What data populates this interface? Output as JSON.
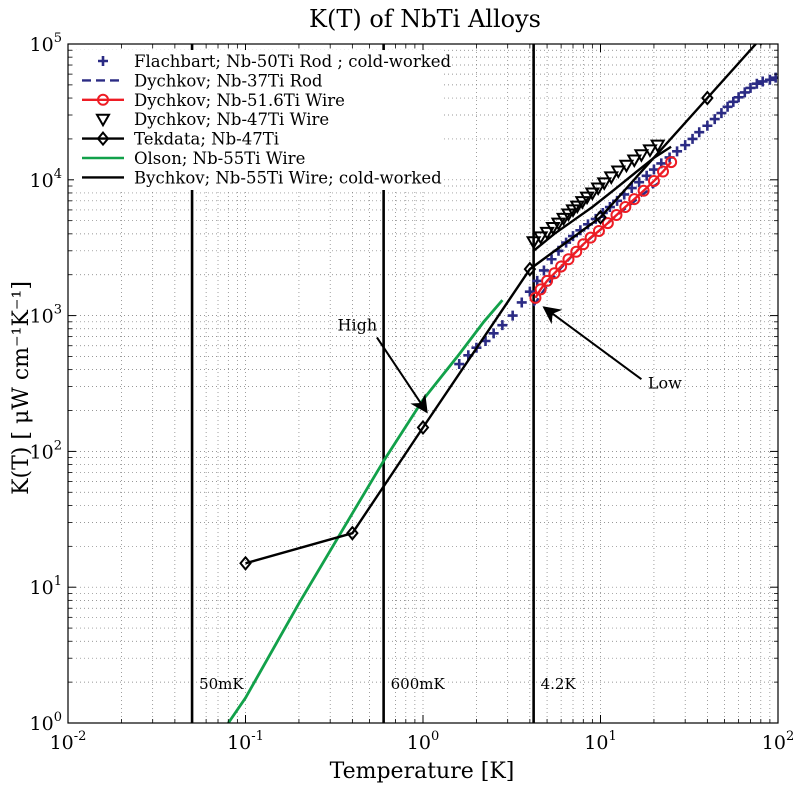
{
  "chart_data": {
    "type": "line",
    "title": "K(T) of NbTi Alloys",
    "xlabel": "Temperature [K]",
    "ylabel": "K(T) [ μW cm⁻¹K⁻¹]",
    "xscale": "log",
    "yscale": "log",
    "xlim": [
      0.01,
      100
    ],
    "ylim": [
      1,
      100000
    ],
    "grid": true,
    "legend_position": "top-left",
    "x_ticks": [
      {
        "value": 0.01,
        "base": "10",
        "exp": "-2"
      },
      {
        "value": 0.1,
        "base": "10",
        "exp": "-1"
      },
      {
        "value": 1,
        "base": "10",
        "exp": "0"
      },
      {
        "value": 10,
        "base": "10",
        "exp": "1"
      },
      {
        "value": 100,
        "base": "10",
        "exp": "2"
      }
    ],
    "y_ticks": [
      {
        "value": 1,
        "base": "10",
        "exp": "0"
      },
      {
        "value": 10,
        "base": "10",
        "exp": "1"
      },
      {
        "value": 100,
        "base": "10",
        "exp": "2"
      },
      {
        "value": 1000,
        "base": "10",
        "exp": "3"
      },
      {
        "value": 10000,
        "base": "10",
        "exp": "4"
      },
      {
        "value": 100000,
        "base": "10",
        "exp": "5"
      }
    ],
    "vertical_lines": [
      {
        "x": 0.05,
        "label": "50mK"
      },
      {
        "x": 0.6,
        "label": "600mK"
      },
      {
        "x": 4.2,
        "label": "4.2K"
      }
    ],
    "annotations": [
      {
        "text": "High",
        "text_x": 0.33,
        "text_y": 780,
        "arrow_from": [
          0.55,
          690
        ],
        "arrow_to": [
          1.05,
          195
        ]
      },
      {
        "text": "Low",
        "text_x": 18.5,
        "text_y": 290,
        "arrow_from": [
          17,
          340
        ],
        "arrow_to": [
          4.8,
          1150
        ]
      }
    ],
    "series": [
      {
        "name": "Flachbart; Nb-50Ti Rod ; cold-worked",
        "color": "#2b2b84",
        "line": "none",
        "marker": "plus",
        "points": [
          [
            1.6,
            440
          ],
          [
            1.8,
            510
          ],
          [
            2.0,
            580
          ],
          [
            2.25,
            650
          ],
          [
            2.5,
            740
          ],
          [
            2.8,
            850
          ],
          [
            3.2,
            1000
          ],
          [
            3.6,
            1250
          ],
          [
            4.0,
            1500
          ],
          [
            4.4,
            1800
          ],
          [
            4.8,
            2150
          ],
          [
            5.3,
            2600
          ],
          [
            5.8,
            3000
          ],
          [
            6.4,
            3450
          ],
          [
            7.0,
            3850
          ],
          [
            7.7,
            4250
          ],
          [
            8.5,
            4700
          ],
          [
            9.4,
            5150
          ],
          [
            10.3,
            5700
          ],
          [
            11.3,
            6300
          ],
          [
            12.4,
            7000
          ],
          [
            13.6,
            7800
          ],
          [
            15,
            8700
          ],
          [
            16.5,
            9600
          ],
          [
            18.2,
            10700
          ],
          [
            20,
            11900
          ],
          [
            22,
            13200
          ],
          [
            24.5,
            14600
          ],
          [
            27,
            16200
          ],
          [
            30,
            18000
          ],
          [
            33,
            20000
          ],
          [
            36,
            22400
          ],
          [
            40,
            25000
          ],
          [
            44,
            28000
          ],
          [
            48,
            31000
          ],
          [
            52,
            34500
          ],
          [
            56,
            37500
          ],
          [
            60,
            40500
          ],
          [
            65,
            44000
          ],
          [
            70,
            47500
          ],
          [
            76,
            51000
          ],
          [
            82,
            53000
          ],
          [
            90,
            54500
          ],
          [
            97,
            56500
          ]
        ]
      },
      {
        "name": "Dychkov; Nb-37Ti Rod",
        "color": "#2b2b84",
        "line": "dashed",
        "marker": "none",
        "points": [
          [
            4.2,
            1180
          ],
          [
            4.6,
            1420
          ],
          [
            5.2,
            1780
          ],
          [
            6,
            2250
          ],
          [
            7,
            2800
          ],
          [
            8,
            3350
          ],
          [
            10,
            4300
          ],
          [
            12,
            5300
          ],
          [
            15,
            6700
          ],
          [
            18,
            8100
          ],
          [
            22,
            9800
          ]
        ]
      },
      {
        "name": "Dychkov; Nb-51.6Ti Wire",
        "color": "#ee1c24",
        "line": "solid",
        "marker": "circle",
        "points": [
          [
            4.3,
            1350
          ],
          [
            4.6,
            1560
          ],
          [
            5.0,
            1800
          ],
          [
            5.5,
            2050
          ],
          [
            6.0,
            2300
          ],
          [
            6.6,
            2600
          ],
          [
            7.3,
            2950
          ],
          [
            8.0,
            3350
          ],
          [
            8.8,
            3750
          ],
          [
            9.8,
            4200
          ],
          [
            11,
            4800
          ],
          [
            12.3,
            5500
          ],
          [
            13.8,
            6300
          ],
          [
            15.5,
            7200
          ],
          [
            17.5,
            8300
          ],
          [
            20,
            9800
          ],
          [
            22.5,
            11500
          ],
          [
            25,
            13500
          ]
        ]
      },
      {
        "name": "Dychkov; Nb-47Ti Wire",
        "color": "#000000",
        "line": "none",
        "marker": "triangle-down",
        "points": [
          [
            4.2,
            3500
          ],
          [
            4.6,
            3800
          ],
          [
            5.0,
            4100
          ],
          [
            5.4,
            4450
          ],
          [
            5.8,
            4800
          ],
          [
            6.2,
            5200
          ],
          [
            6.6,
            5600
          ],
          [
            7.0,
            6000
          ],
          [
            7.4,
            6400
          ],
          [
            7.9,
            6900
          ],
          [
            8.4,
            7450
          ],
          [
            9.0,
            8000
          ],
          [
            9.7,
            8700
          ],
          [
            10.5,
            9500
          ],
          [
            11.5,
            10500
          ],
          [
            12.6,
            11600
          ],
          [
            14,
            12800
          ],
          [
            15.5,
            14000
          ],
          [
            17,
            15300
          ],
          [
            19,
            16600
          ],
          [
            21,
            18000
          ]
        ]
      },
      {
        "name": "Tekdata; Nb-47Ti",
        "color": "#000000",
        "line": "solid",
        "marker": "diamond",
        "points": [
          [
            0.1,
            15
          ],
          [
            0.4,
            25
          ],
          [
            1.0,
            150
          ],
          [
            4.0,
            2200
          ],
          [
            10,
            5300
          ],
          [
            40,
            40000
          ],
          [
            80,
            110000
          ]
        ]
      },
      {
        "name": "Olson; Nb-55Ti Wire",
        "color": "#12a14a",
        "line": "solid",
        "marker": "none",
        "points": [
          [
            0.08,
            1
          ],
          [
            0.1,
            1.53
          ],
          [
            0.2,
            7.6
          ],
          [
            0.4,
            35
          ],
          [
            0.6,
            85
          ],
          [
            1.0,
            240
          ],
          [
            1.6,
            520
          ],
          [
            2.2,
            900
          ],
          [
            2.8,
            1300
          ]
        ]
      },
      {
        "name": "Bychkov; Nb-55Ti Wire; cold-worked",
        "color": "#000000",
        "line": "solid",
        "marker": "none",
        "points": [
          [
            4.2,
            3000
          ],
          [
            5.5,
            4000
          ],
          [
            7,
            5000
          ],
          [
            9,
            6300
          ],
          [
            12,
            8500
          ],
          [
            16,
            11500
          ],
          [
            20,
            14500
          ],
          [
            25,
            17500
          ]
        ]
      }
    ]
  }
}
